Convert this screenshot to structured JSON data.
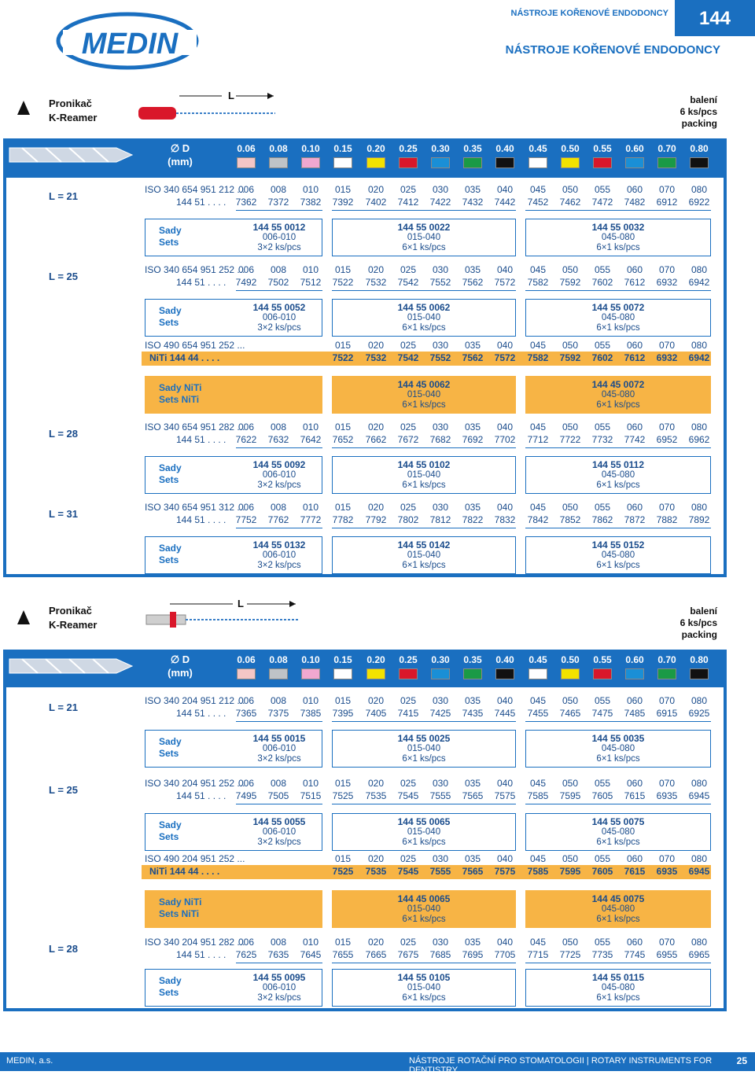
{
  "header": {
    "small": "NÁSTROJE KOŘENOVÉ ENDODONCY",
    "page_num": "144",
    "big": "NÁSTROJE KOŘENOVÉ ENDODONCY",
    "logo_text": "MEDIN"
  },
  "sec1": {
    "title1": "Pronikač",
    "title2": "K-Reamer",
    "L": "L",
    "pk1": "balení",
    "pk2": "6 ks/pcs",
    "pk3": "packing"
  },
  "sec2": {
    "title1": "Pronikač",
    "title2": "K-Reamer",
    "L": "L",
    "pk1": "balení",
    "pk2": "6 ks/pcs",
    "pk3": "packing"
  },
  "bar": {
    "d": "∅ D",
    "mm": "(mm)",
    "sizes": [
      "0.06",
      "0.08",
      "0.10",
      "0.15",
      "0.20",
      "0.25",
      "0.30",
      "0.35",
      "0.40",
      "0.45",
      "0.50",
      "0.55",
      "0.60",
      "0.70",
      "0.80"
    ],
    "colors": [
      "#f4c6c6",
      "#bfc3c7",
      "#f0a8d0",
      "#ffffff",
      "#f2e200",
      "#d9172a",
      "#1a8fd6",
      "#1a9a46",
      "#111111",
      "#ffffff",
      "#f2e200",
      "#d9172a",
      "#1a8fd6",
      "#1a9a46",
      "#111111"
    ]
  },
  "codes": [
    "006",
    "008",
    "010",
    "015",
    "020",
    "025",
    "030",
    "035",
    "040",
    "045",
    "050",
    "055",
    "060",
    "070",
    "080"
  ],
  "codes_niti": [
    "015",
    "020",
    "025",
    "030",
    "035",
    "040",
    "045",
    "050",
    "055",
    "060",
    "070",
    "080"
  ],
  "s1": {
    "L21": {
      "L": "L = 21",
      "iso": "ISO 340 654 951 212 ...",
      "pre": "144 51 . . . .",
      "nums": [
        "7362",
        "7372",
        "7382",
        "7392",
        "7402",
        "7412",
        "7422",
        "7432",
        "7442",
        "7452",
        "7462",
        "7472",
        "7482",
        "6912",
        "6922"
      ]
    },
    "sets21": {
      "a": "Sady",
      "b": "Sets",
      "g1": [
        "144 55 0012",
        "006-010",
        "3×2 ks/pcs"
      ],
      "g2": [
        "144 55 0022",
        "015-040",
        "6×1 ks/pcs"
      ],
      "g3": [
        "144 55 0032",
        "045-080",
        "6×1 ks/pcs"
      ]
    },
    "L25": {
      "L": "L = 25",
      "iso": "ISO 340 654 951 252 ...",
      "pre": "144 51 . . . .",
      "nums": [
        "7492",
        "7502",
        "7512",
        "7522",
        "7532",
        "7542",
        "7552",
        "7562",
        "7572",
        "7582",
        "7592",
        "7602",
        "7612",
        "6932",
        "6942"
      ]
    },
    "sets25": {
      "a": "Sady",
      "b": "Sets",
      "g1": [
        "144 55 0052",
        "006-010",
        "3×2 ks/pcs"
      ],
      "g2": [
        "144 55 0062",
        "015-040",
        "6×1 ks/pcs"
      ],
      "g3": [
        "144 55 0072",
        "045-080",
        "6×1 ks/pcs"
      ]
    },
    "niti": {
      "iso": "ISO 490 654 951 252 ...",
      "pre": "NiTi   144 44 . . . .",
      "nums": [
        "7522",
        "7532",
        "7542",
        "7552",
        "7562",
        "7572",
        "7582",
        "7592",
        "7602",
        "7612",
        "6932",
        "6942"
      ]
    },
    "setsniti": {
      "a": "Sady NiTi",
      "b": "Sets NiTi",
      "g2": [
        "144 45 0062",
        "015-040",
        "6×1 ks/pcs"
      ],
      "g3": [
        "144 45 0072",
        "045-080",
        "6×1 ks/pcs"
      ]
    },
    "L28": {
      "L": "L = 28",
      "iso": "ISO 340 654 951 282 ...",
      "pre": "144 51 . . . .",
      "nums": [
        "7622",
        "7632",
        "7642",
        "7652",
        "7662",
        "7672",
        "7682",
        "7692",
        "7702",
        "7712",
        "7722",
        "7732",
        "7742",
        "6952",
        "6962"
      ]
    },
    "sets28": {
      "a": "Sady",
      "b": "Sets",
      "g1": [
        "144 55 0092",
        "006-010",
        "3×2 ks/pcs"
      ],
      "g2": [
        "144 55 0102",
        "015-040",
        "6×1 ks/pcs"
      ],
      "g3": [
        "144 55 0112",
        "045-080",
        "6×1 ks/pcs"
      ]
    },
    "L31": {
      "L": "L = 31",
      "iso": "ISO 340 654 951 312 ...",
      "pre": "144 51 . . . .",
      "nums": [
        "7752",
        "7762",
        "7772",
        "7782",
        "7792",
        "7802",
        "7812",
        "7822",
        "7832",
        "7842",
        "7852",
        "7862",
        "7872",
        "7882",
        "7892"
      ]
    },
    "sets31": {
      "a": "Sady",
      "b": "Sets",
      "g1": [
        "144 55 0132",
        "006-010",
        "3×2 ks/pcs"
      ],
      "g2": [
        "144 55 0142",
        "015-040",
        "6×1 ks/pcs"
      ],
      "g3": [
        "144 55 0152",
        "045-080",
        "6×1 ks/pcs"
      ]
    }
  },
  "s2": {
    "L21": {
      "L": "L = 21",
      "iso": "ISO 340 204 951 212 ...",
      "pre": "144 51 . . . .",
      "nums": [
        "7365",
        "7375",
        "7385",
        "7395",
        "7405",
        "7415",
        "7425",
        "7435",
        "7445",
        "7455",
        "7465",
        "7475",
        "7485",
        "6915",
        "6925"
      ]
    },
    "sets21": {
      "a": "Sady",
      "b": "Sets",
      "g1": [
        "144 55 0015",
        "006-010",
        "3×2 ks/pcs"
      ],
      "g2": [
        "144 55 0025",
        "015-040",
        "6×1 ks/pcs"
      ],
      "g3": [
        "144 55 0035",
        "045-080",
        "6×1 ks/pcs"
      ]
    },
    "L25": {
      "L": "L = 25",
      "iso": "ISO 340 204 951 252 ...",
      "pre": "144 51 . . . .",
      "nums": [
        "7495",
        "7505",
        "7515",
        "7525",
        "7535",
        "7545",
        "7555",
        "7565",
        "7575",
        "7585",
        "7595",
        "7605",
        "7615",
        "6935",
        "6945"
      ]
    },
    "sets25": {
      "a": "Sady",
      "b": "Sets",
      "g1": [
        "144 55 0055",
        "006-010",
        "3×2 ks/pcs"
      ],
      "g2": [
        "144 55 0065",
        "015-040",
        "6×1 ks/pcs"
      ],
      "g3": [
        "144 55 0075",
        "045-080",
        "6×1 ks/pcs"
      ]
    },
    "niti": {
      "iso": "ISO 490 204 951 252 ...",
      "pre": "NiTi   144 44 . . . .",
      "nums": [
        "7525",
        "7535",
        "7545",
        "7555",
        "7565",
        "7575",
        "7585",
        "7595",
        "7605",
        "7615",
        "6935",
        "6945"
      ]
    },
    "setsniti": {
      "a": "Sady NiTi",
      "b": "Sets NiTi",
      "g2": [
        "144 45 0065",
        "015-040",
        "6×1 ks/pcs"
      ],
      "g3": [
        "144 45 0075",
        "045-080",
        "6×1 ks/pcs"
      ]
    },
    "L28": {
      "L": "L = 28",
      "iso": "ISO 340 204 951 282 ...",
      "pre": "144 51 . . . .",
      "nums": [
        "7625",
        "7635",
        "7645",
        "7655",
        "7665",
        "7675",
        "7685",
        "7695",
        "7705",
        "7715",
        "7725",
        "7735",
        "7745",
        "6955",
        "6965"
      ]
    },
    "sets28": {
      "a": "Sady",
      "b": "Sets",
      "g1": [
        "144 55 0095",
        "006-010",
        "3×2 ks/pcs"
      ],
      "g2": [
        "144 55 0105",
        "015-040",
        "6×1 ks/pcs"
      ],
      "g3": [
        "144 55 0115",
        "045-080",
        "6×1 ks/pcs"
      ]
    }
  },
  "footer": {
    "left": "MEDIN, a.s.",
    "center": "NÁSTROJE ROTAČNÍ PRO STOMATOLOGII  |  ROTARY INSTRUMENTS FOR DENTISTRY",
    "page": "25"
  }
}
